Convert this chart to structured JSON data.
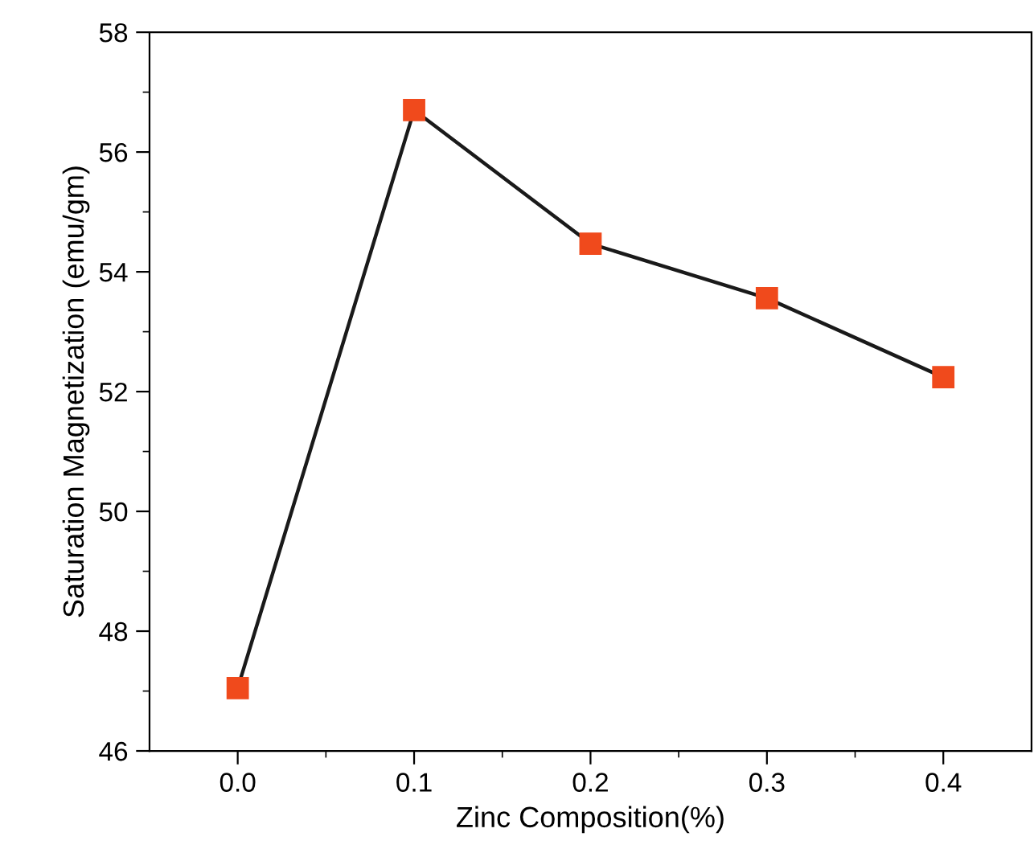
{
  "chart_data": {
    "type": "line",
    "xlabel": "Zinc Composition(%)",
    "ylabel": "Saturation Magnetization (emu/gm)",
    "x": [
      0.0,
      0.1,
      0.2,
      0.3,
      0.4
    ],
    "series": [
      {
        "color": "#f04a1c",
        "values": [
          47.05,
          56.7,
          54.47,
          53.56,
          52.24
        ]
      }
    ],
    "marker": "square",
    "line_style": "solid",
    "grid": false,
    "legend": false,
    "xlim": [
      -0.05,
      0.45
    ],
    "xticks": [
      {
        "value": 0.0,
        "label": "0.0"
      },
      {
        "value": 0.1,
        "label": "0.1"
      },
      {
        "value": 0.2,
        "label": "0.2"
      },
      {
        "value": 0.3,
        "label": "0.3"
      },
      {
        "value": 0.4,
        "label": "0.4"
      }
    ],
    "ylim": [
      46,
      58
    ],
    "yticks": [
      46,
      48,
      50,
      52,
      54,
      56,
      58
    ]
  }
}
